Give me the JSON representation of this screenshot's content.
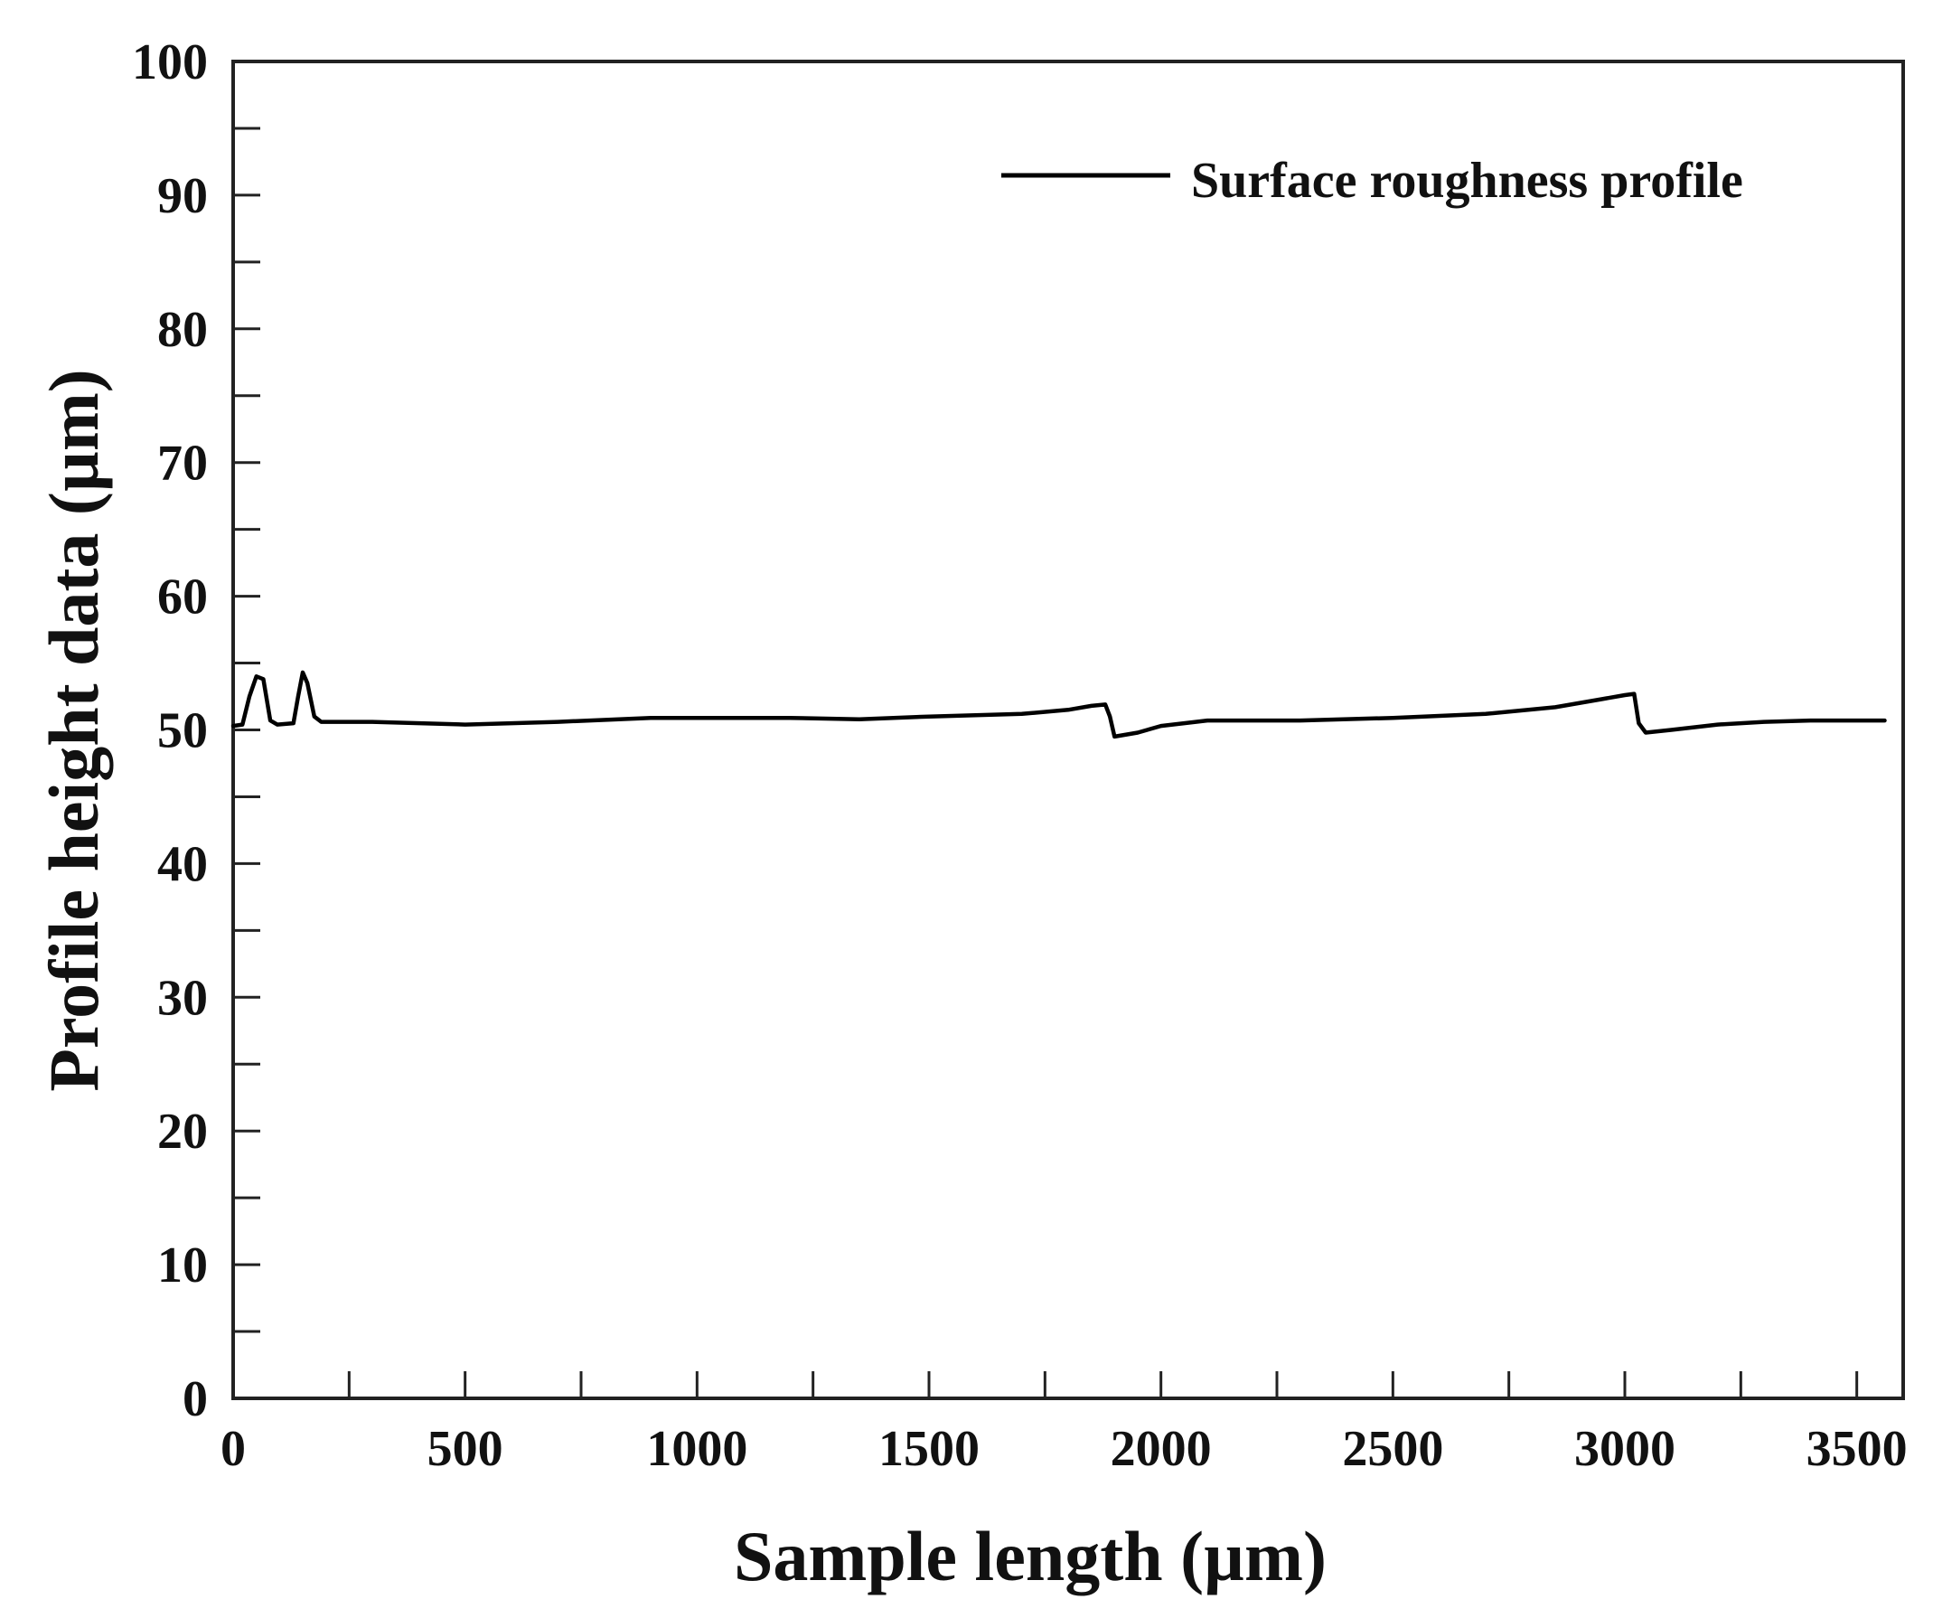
{
  "chart_data": {
    "type": "line",
    "title": "",
    "xlabel": "Sample length (µm)",
    "ylabel": "Profile height data (µm)",
    "xlim": [
      0,
      3600
    ],
    "ylim": [
      0,
      100
    ],
    "x_ticks": [
      0,
      500,
      1000,
      1500,
      2000,
      2500,
      3000,
      3500
    ],
    "x_minor_ticks": [
      250,
      750,
      1250,
      1750,
      2250,
      2750,
      3250
    ],
    "y_ticks": [
      0,
      10,
      20,
      30,
      40,
      50,
      60,
      70,
      80,
      90,
      100
    ],
    "y_minor_ticks": [
      5,
      15,
      25,
      35,
      45,
      55,
      65,
      75,
      85,
      95
    ],
    "grid": false,
    "legend_position": "top-right",
    "colors": {
      "line": "#000000",
      "axis": "#222222"
    },
    "series": [
      {
        "name": "Surface roughness profile",
        "x": [
          0,
          20,
          35,
          50,
          65,
          80,
          95,
          130,
          140,
          150,
          160,
          175,
          190,
          300,
          500,
          700,
          900,
          1000,
          1200,
          1350,
          1500,
          1700,
          1800,
          1850,
          1880,
          1890,
          1900,
          1950,
          2000,
          2100,
          2300,
          2500,
          2700,
          2850,
          2950,
          3000,
          3020,
          3030,
          3045,
          3100,
          3200,
          3300,
          3400,
          3500,
          3560
        ],
        "y": [
          50.3,
          50.4,
          52.5,
          54.0,
          53.8,
          50.7,
          50.4,
          50.5,
          52.5,
          54.3,
          53.5,
          51.0,
          50.6,
          50.6,
          50.4,
          50.6,
          50.9,
          50.9,
          50.9,
          50.8,
          51.0,
          51.2,
          51.5,
          51.8,
          51.9,
          51.0,
          49.5,
          49.8,
          50.3,
          50.7,
          50.7,
          50.9,
          51.2,
          51.7,
          52.3,
          52.6,
          52.7,
          50.5,
          49.8,
          50.0,
          50.4,
          50.6,
          50.7,
          50.7,
          50.7
        ]
      }
    ]
  }
}
